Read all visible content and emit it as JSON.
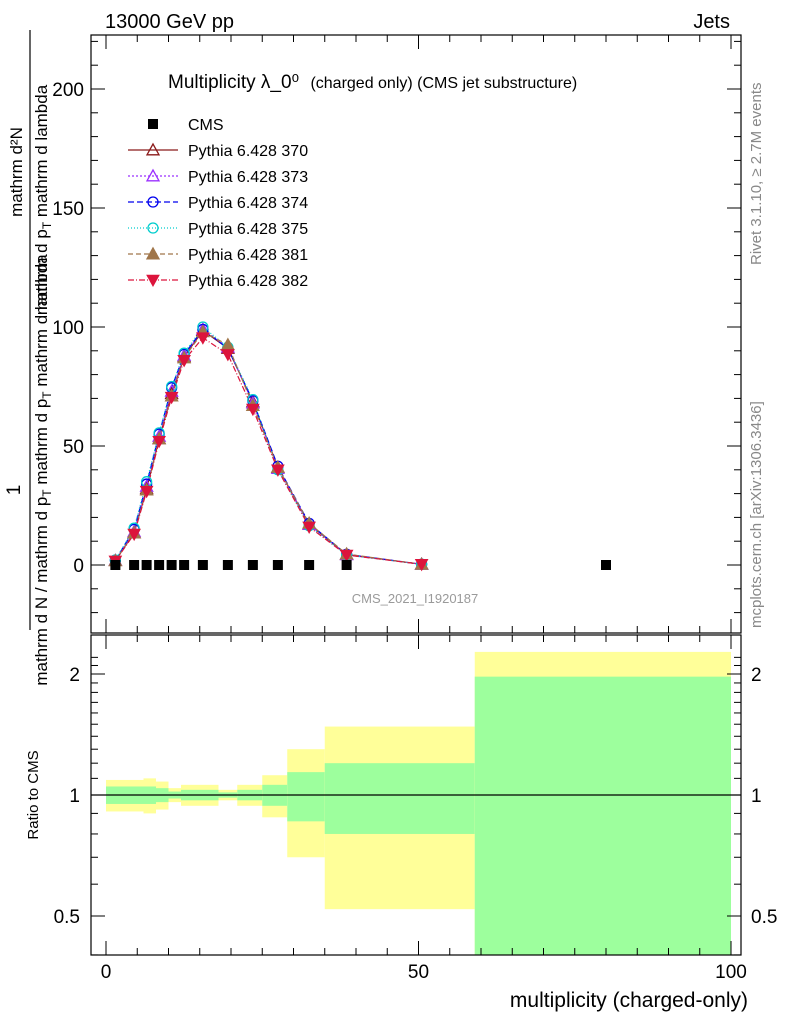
{
  "header": {
    "left": "13000 GeV pp",
    "right": "Jets"
  },
  "side_labels": {
    "rivet": "Rivet 3.1.10, ≥ 2.7M events",
    "mcplots": "mcplots.cern.ch [arXiv:1306.3436]"
  },
  "chart_data": [
    {
      "type": "line",
      "title": "Multiplicity λ_0⁰",
      "subtitle": "(charged only) (CMS jet substructure)",
      "watermark": "CMS_2021_I1920187",
      "ylabel_top": "1",
      "ylabel_bottom": "mathrm d N / mathrm d p_T mathrm d p_T mathrm d lambda",
      "ylabel_num": "mathrm d²N",
      "xlim": [
        -4,
        101
      ],
      "ylim": [
        -25,
        223
      ],
      "yticks": [
        0,
        50,
        100,
        150,
        200
      ],
      "xticks": [
        0,
        50,
        100
      ],
      "legend_position": "top-left",
      "cms": {
        "name": "CMS",
        "x": [
          1.5,
          4.5,
          6.5,
          8.5,
          10.5,
          12.5,
          15.5,
          19.5,
          23.5,
          27.5,
          32.5,
          38.5,
          80
        ],
        "y": [
          0,
          0,
          0,
          0,
          0,
          0,
          0,
          0,
          0,
          0,
          0,
          0,
          0
        ]
      },
      "mc_x": [
        1.5,
        4.5,
        6.5,
        8.5,
        10.5,
        12.5,
        15.5,
        19.5,
        23.5,
        27.5,
        32.5,
        38.5,
        50.5
      ],
      "series": [
        {
          "name": "Pythia 6.428 370",
          "color": "#8b1a1a",
          "dash": "",
          "marker": "tri-up-open",
          "values": [
            1.8,
            13.5,
            32,
            53,
            72,
            87.5,
            98.5,
            91,
            68.5,
            41,
            17,
            4.4,
            0.3
          ]
        },
        {
          "name": "Pythia 6.428 373",
          "color": "#9b30ff",
          "dash": "2,2",
          "marker": "tri-up-open",
          "values": [
            1.9,
            14,
            33,
            54,
            73,
            88,
            99,
            91.5,
            68,
            40.5,
            17,
            4.3,
            0.3
          ]
        },
        {
          "name": "Pythia 6.428 374",
          "color": "#0000ee",
          "dash": "6,3",
          "marker": "circle-open",
          "values": [
            2.0,
            15,
            34,
            55,
            74.5,
            88.5,
            99,
            91,
            69,
            41.5,
            17.5,
            4.5,
            0.3
          ]
        },
        {
          "name": "Pythia 6.428 375",
          "color": "#00cdcd",
          "dash": "1,2",
          "marker": "circle-open",
          "values": [
            2.1,
            15.5,
            35,
            55.5,
            75,
            89,
            100,
            91.5,
            69.5,
            40,
            16.5,
            4.2,
            0.3
          ]
        },
        {
          "name": "Pythia 6.428 381",
          "color": "#a0764a",
          "dash": "5,3",
          "marker": "tri-up-filled",
          "values": [
            1.8,
            13.5,
            31.5,
            53,
            71,
            87,
            98,
            92.5,
            67,
            41,
            17.5,
            4.6,
            0.3
          ]
        },
        {
          "name": "Pythia 6.428 382",
          "color": "#dc143c",
          "dash": "6,2,1,2",
          "marker": "tri-down-filled",
          "values": [
            1.7,
            13,
            31,
            52,
            70.5,
            86,
            95.5,
            88.5,
            65.5,
            40,
            16,
            4.2,
            0.3
          ]
        }
      ]
    },
    {
      "type": "area",
      "ylabel": "Ratio to CMS",
      "xlabel": "multiplicity (charged-only)",
      "xlim": [
        -4,
        101
      ],
      "ylim": [
        0.35,
        2.27
      ],
      "yticks": [
        0.5,
        1,
        2
      ],
      "ytick_labels": [
        "0.5",
        "1",
        "2"
      ],
      "xticks": [
        0,
        50,
        100
      ],
      "reference_line": 1,
      "bins": [
        {
          "x": [
            0,
            4
          ],
          "inner": [
            0.95,
            1.05
          ],
          "outer": [
            0.91,
            1.09
          ]
        },
        {
          "x": [
            4,
            6
          ],
          "inner": [
            0.95,
            1.05
          ],
          "outer": [
            0.91,
            1.09
          ]
        },
        {
          "x": [
            6,
            8
          ],
          "inner": [
            0.95,
            1.05
          ],
          "outer": [
            0.9,
            1.1
          ]
        },
        {
          "x": [
            8,
            10
          ],
          "inner": [
            0.96,
            1.04
          ],
          "outer": [
            0.92,
            1.08
          ]
        },
        {
          "x": [
            10,
            12
          ],
          "inner": [
            0.98,
            1.02
          ],
          "outer": [
            0.96,
            1.04
          ]
        },
        {
          "x": [
            12,
            18
          ],
          "inner": [
            0.97,
            1.03
          ],
          "outer": [
            0.94,
            1.06
          ]
        },
        {
          "x": [
            18,
            21
          ],
          "inner": [
            0.985,
            1.015
          ],
          "outer": [
            0.97,
            1.03
          ]
        },
        {
          "x": [
            21,
            25
          ],
          "inner": [
            0.97,
            1.03
          ],
          "outer": [
            0.94,
            1.06
          ]
        },
        {
          "x": [
            25,
            29
          ],
          "inner": [
            0.94,
            1.06
          ],
          "outer": [
            0.88,
            1.12
          ]
        },
        {
          "x": [
            29,
            35
          ],
          "inner": [
            0.86,
            1.14
          ],
          "outer": [
            0.7,
            1.3
          ]
        },
        {
          "x": [
            35,
            59
          ],
          "inner": [
            0.8,
            1.2
          ],
          "outer": [
            0.52,
            1.48
          ]
        },
        {
          "x": [
            59,
            100
          ],
          "inner": [
            0.35,
            1.97
          ],
          "outer": [
            0.35,
            2.27
          ]
        }
      ]
    }
  ],
  "colors": {
    "band_inner": "#9dff9d",
    "band_outer": "#ffff99",
    "axis": "#000000",
    "watermark": "#9a9a9a",
    "side_text": "#888888"
  }
}
